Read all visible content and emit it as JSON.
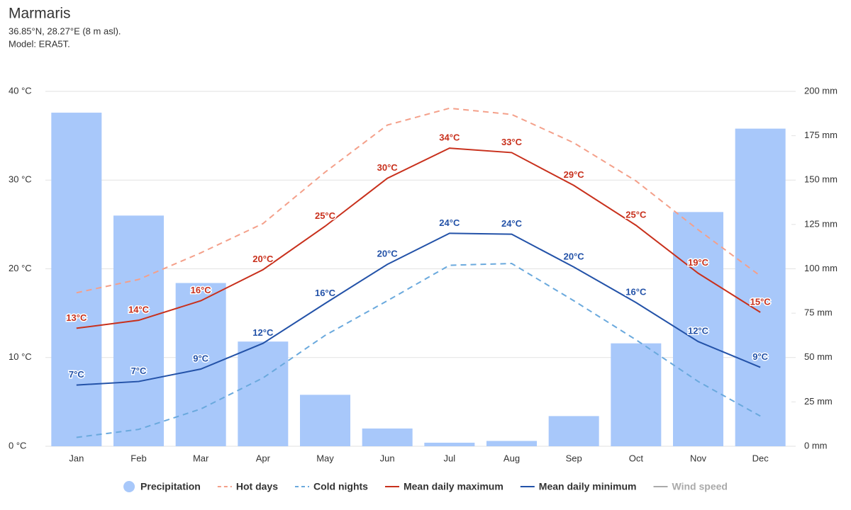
{
  "chart_data": {
    "type": "combo",
    "title": "Marmaris",
    "subtitle": "36.85°N, 28.27°E (8 m asl).",
    "note": "Model: ERA5T.",
    "categories": [
      "Jan",
      "Feb",
      "Mar",
      "Apr",
      "May",
      "Jun",
      "Jul",
      "Aug",
      "Sep",
      "Oct",
      "Nov",
      "Dec"
    ],
    "ylim": [
      0,
      40
    ],
    "yticks": [
      {
        "value": 0,
        "label": "0 °C"
      },
      {
        "value": 10,
        "label": "10 °C"
      },
      {
        "value": 20,
        "label": "20 °C"
      },
      {
        "value": 30,
        "label": "30 °C"
      },
      {
        "value": 40,
        "label": "40 °C"
      }
    ],
    "y2lim": [
      0,
      200
    ],
    "y2ticks": [
      {
        "value": 0,
        "label": "0 mm"
      },
      {
        "value": 25,
        "label": "25 mm"
      },
      {
        "value": 50,
        "label": "50 mm"
      },
      {
        "value": 75,
        "label": "75 mm"
      },
      {
        "value": 100,
        "label": "100 mm"
      },
      {
        "value": 125,
        "label": "125 mm"
      },
      {
        "value": 150,
        "label": "150 mm"
      },
      {
        "value": 175,
        "label": "175 mm"
      },
      {
        "value": 200,
        "label": "200 mm"
      }
    ],
    "grid": true,
    "legend": "bottom",
    "series": [
      {
        "name": "Precipitation",
        "type": "bar",
        "axis": "y2",
        "color": "#a8c8fa",
        "values": [
          188,
          130,
          92,
          59,
          29,
          10,
          2,
          3,
          17,
          58,
          132,
          179
        ]
      },
      {
        "name": "Hot days",
        "type": "line",
        "dash": true,
        "color": "#f4a08a",
        "values": [
          17.3,
          18.8,
          21.8,
          25.1,
          30.9,
          36.2,
          38.1,
          37.4,
          34.2,
          29.9,
          24.4,
          19.2
        ]
      },
      {
        "name": "Cold nights",
        "type": "line",
        "dash": true,
        "color": "#6aa9dd",
        "values": [
          1.0,
          1.9,
          4.2,
          7.7,
          12.5,
          16.4,
          20.4,
          20.6,
          16.4,
          12.0,
          7.3,
          3.4
        ]
      },
      {
        "name": "Mean daily maximum",
        "type": "line",
        "color": "#c8301c",
        "values": [
          13.3,
          14.2,
          16.4,
          19.9,
          24.8,
          30.2,
          33.6,
          33.1,
          29.4,
          24.9,
          19.5,
          15.1
        ],
        "value_labels": [
          "13°C",
          "14°C",
          "16°C",
          "20°C",
          "25°C",
          "30°C",
          "34°C",
          "33°C",
          "29°C",
          "25°C",
          "19°C",
          "15°C"
        ]
      },
      {
        "name": "Mean daily minimum",
        "type": "line",
        "color": "#2352a8",
        "values": [
          6.9,
          7.3,
          8.7,
          11.6,
          16.1,
          20.5,
          24.0,
          23.9,
          20.2,
          16.2,
          11.8,
          8.9
        ],
        "value_labels": [
          "7°C",
          "7°C",
          "9°C",
          "12°C",
          "16°C",
          "20°C",
          "24°C",
          "24°C",
          "20°C",
          "16°C",
          "12°C",
          "9°C"
        ]
      },
      {
        "name": "Wind speed",
        "type": "line",
        "color": "#aaaaaa",
        "visible": false
      }
    ]
  }
}
